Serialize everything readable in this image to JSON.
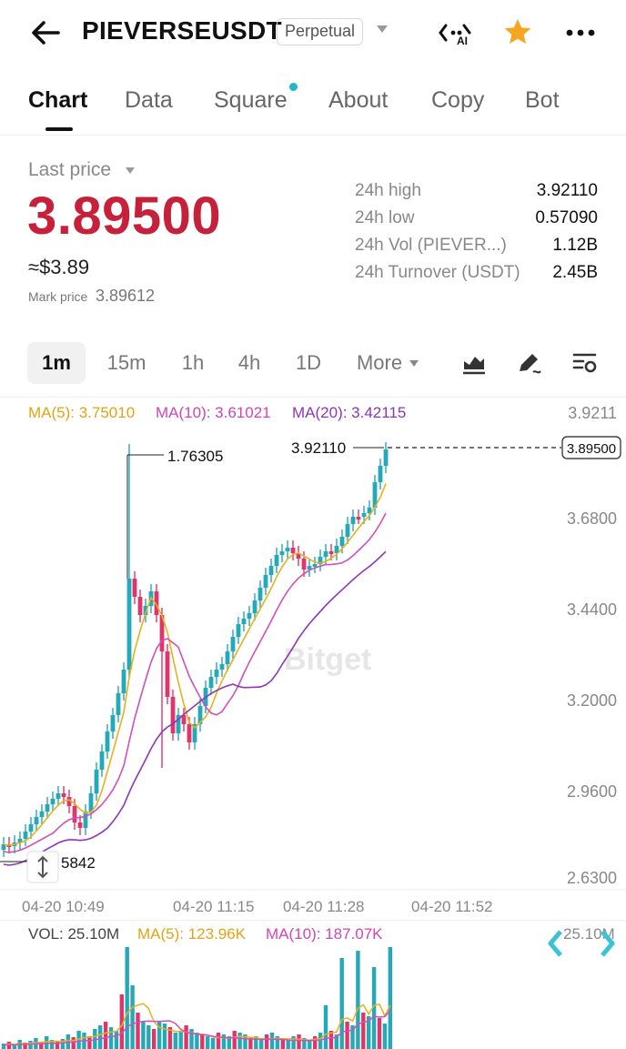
{
  "header": {
    "symbol": "PIEVERSEUSDT",
    "badge": "Perpetual",
    "ai_label": "AI"
  },
  "tabs": [
    {
      "label": "Chart",
      "active": true
    },
    {
      "label": "Data"
    },
    {
      "label": "Square",
      "has_dot": true
    },
    {
      "label": "About"
    },
    {
      "label": "Copy"
    },
    {
      "label": "Bot"
    }
  ],
  "ticker": {
    "last_price_label": "Last price",
    "last_price": "3.89500",
    "usd_approx": "≈$3.89",
    "mark_label": "Mark price",
    "mark_price": "3.89612",
    "stats": [
      {
        "label": "24h high",
        "value": "3.92110"
      },
      {
        "label": "24h low",
        "value": "0.57090"
      },
      {
        "label": "24h Vol (PIEVER...)",
        "value": "1.12B"
      },
      {
        "label": "24h Turnover (USDT)",
        "value": "2.45B"
      }
    ]
  },
  "timeframes": [
    "1m",
    "15m",
    "1h",
    "4h",
    "1D"
  ],
  "more_label": "More",
  "indicators": {
    "ma5": "MA(5): 3.75010",
    "ma10": "MA(10): 3.61021",
    "ma20": "MA(20): 3.42115"
  },
  "chart_data": {
    "type": "candlestick",
    "y_ticks": [
      "3.9211",
      "3.6800",
      "3.4400",
      "3.2000",
      "2.9600",
      "2.6300"
    ],
    "x_ticks": [
      "04-20 10:49",
      "04-20 11:15",
      "04-20 11:28",
      "04-20 11:52"
    ],
    "high_annotation": "3.92110",
    "spike_annotation": "1.76305",
    "low_annotation": "5842",
    "current_price_tag": "3.89500",
    "watermark": "Bitget",
    "colors": {
      "up": "#24a9b8",
      "down": "#e0356a",
      "ma5": "#e8b11c",
      "ma10": "#d14fbd",
      "ma20": "#8e36b6"
    }
  },
  "volume": {
    "vol": "VOL: 25.10M",
    "ma5": "MA(5): 123.96K",
    "ma10": "MA(10): 187.07K",
    "right_label": "25.10M"
  }
}
